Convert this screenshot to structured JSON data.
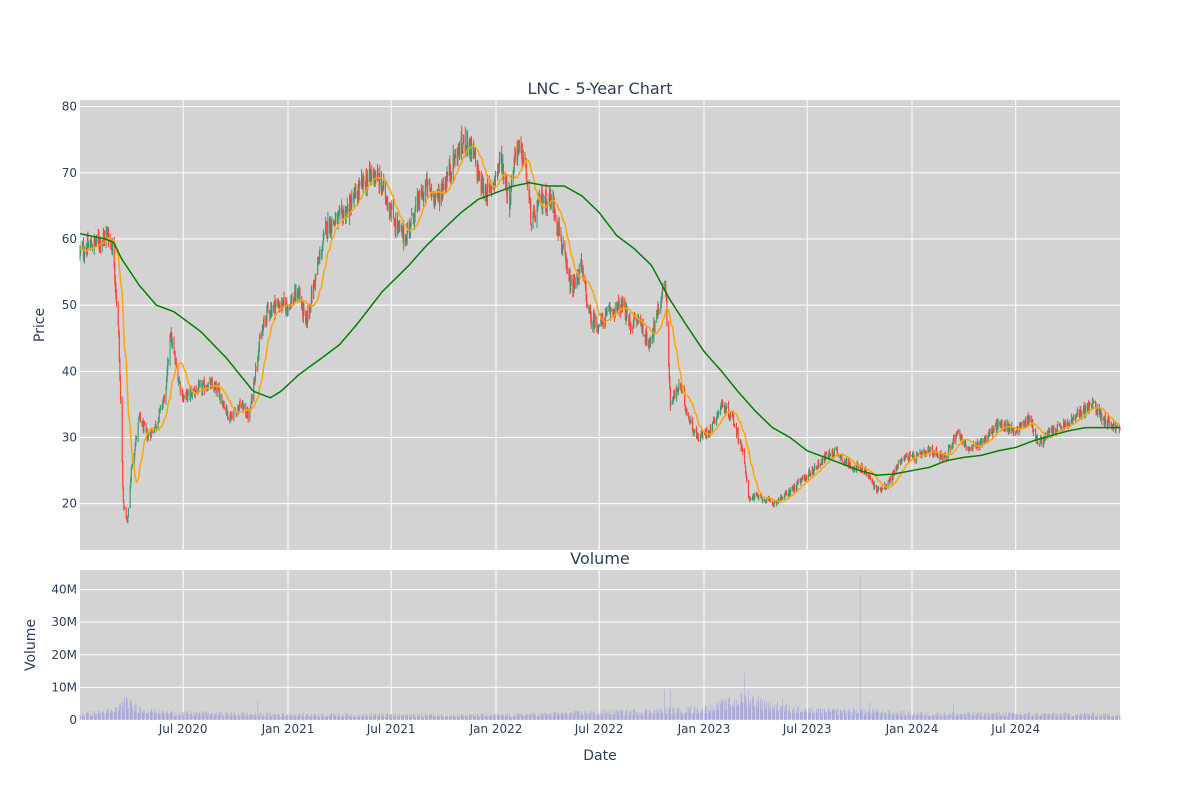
{
  "chart_data": [
    {
      "type": "candlestick",
      "title": "LNC - 5-Year Chart",
      "xlabel": "",
      "ylabel": "Price",
      "ylim": [
        13,
        81
      ],
      "yticks": [
        20,
        30,
        40,
        50,
        60,
        70,
        80
      ],
      "xlim": [
        "2020-01-02",
        "2024-12-31"
      ],
      "grid": true,
      "plot_bg": "#d3d3d3",
      "colors": {
        "up": "#3d9970",
        "down": "#ff4136",
        "ma_short": "#ffa500",
        "ma_long": "#008000"
      },
      "price_waypoints": [
        [
          "2020-01-02",
          58
        ],
        [
          "2020-01-20",
          59
        ],
        [
          "2020-02-10",
          60
        ],
        [
          "2020-02-20",
          61
        ],
        [
          "2020-03-01",
          58
        ],
        [
          "2020-03-10",
          45
        ],
        [
          "2020-03-18",
          20
        ],
        [
          "2020-03-25",
          17
        ],
        [
          "2020-04-01",
          25
        ],
        [
          "2020-04-15",
          33
        ],
        [
          "2020-04-30",
          30
        ],
        [
          "2020-05-15",
          32
        ],
        [
          "2020-06-01",
          37
        ],
        [
          "2020-06-08",
          46
        ],
        [
          "2020-06-20",
          40
        ],
        [
          "2020-07-01",
          36
        ],
        [
          "2020-07-20",
          37
        ],
        [
          "2020-08-15",
          38
        ],
        [
          "2020-09-01",
          37
        ],
        [
          "2020-09-20",
          33
        ],
        [
          "2020-10-10",
          35
        ],
        [
          "2020-10-25",
          33
        ],
        [
          "2020-11-09",
          43
        ],
        [
          "2020-11-25",
          49
        ],
        [
          "2020-12-10",
          50
        ],
        [
          "2021-01-01",
          50
        ],
        [
          "2021-01-20",
          52
        ],
        [
          "2021-02-01",
          47
        ],
        [
          "2021-02-20",
          55
        ],
        [
          "2021-03-10",
          62
        ],
        [
          "2021-04-01",
          63
        ],
        [
          "2021-04-20",
          65
        ],
        [
          "2021-05-10",
          68
        ],
        [
          "2021-06-01",
          70
        ],
        [
          "2021-06-20",
          67
        ],
        [
          "2021-07-10",
          62
        ],
        [
          "2021-07-25",
          60
        ],
        [
          "2021-08-15",
          65
        ],
        [
          "2021-09-01",
          68
        ],
        [
          "2021-09-20",
          66
        ],
        [
          "2021-10-10",
          70
        ],
        [
          "2021-10-25",
          73
        ],
        [
          "2021-11-10",
          75
        ],
        [
          "2021-11-25",
          72
        ],
        [
          "2021-12-05",
          68
        ],
        [
          "2021-12-20",
          67
        ],
        [
          "2022-01-10",
          72
        ],
        [
          "2022-01-25",
          66
        ],
        [
          "2022-02-05",
          74
        ],
        [
          "2022-02-20",
          72
        ],
        [
          "2022-03-05",
          62
        ],
        [
          "2022-03-20",
          66
        ],
        [
          "2022-04-10",
          66
        ],
        [
          "2022-04-25",
          60
        ],
        [
          "2022-05-05",
          55
        ],
        [
          "2022-05-15",
          52
        ],
        [
          "2022-05-30",
          56
        ],
        [
          "2022-06-15",
          48
        ],
        [
          "2022-07-01",
          47
        ],
        [
          "2022-07-20",
          49
        ],
        [
          "2022-08-10",
          50
        ],
        [
          "2022-08-25",
          47
        ],
        [
          "2022-09-10",
          48
        ],
        [
          "2022-09-25",
          44
        ],
        [
          "2022-10-10",
          48
        ],
        [
          "2022-10-25",
          54
        ],
        [
          "2022-11-03",
          35
        ],
        [
          "2022-11-20",
          38
        ],
        [
          "2022-12-05",
          33
        ],
        [
          "2022-12-20",
          30
        ],
        [
          "2023-01-10",
          31
        ],
        [
          "2023-02-01",
          35
        ],
        [
          "2023-02-20",
          33
        ],
        [
          "2023-03-10",
          28
        ],
        [
          "2023-03-20",
          21
        ],
        [
          "2023-04-10",
          21
        ],
        [
          "2023-05-01",
          20
        ],
        [
          "2023-05-20",
          21
        ],
        [
          "2023-06-15",
          23
        ],
        [
          "2023-07-10",
          25
        ],
        [
          "2023-08-01",
          27
        ],
        [
          "2023-08-20",
          28
        ],
        [
          "2023-09-10",
          26
        ],
        [
          "2023-10-10",
          25
        ],
        [
          "2023-11-01",
          22
        ],
        [
          "2023-11-20",
          23
        ],
        [
          "2023-12-15",
          27
        ],
        [
          "2024-01-10",
          27
        ],
        [
          "2024-02-01",
          28
        ],
        [
          "2024-03-01",
          27
        ],
        [
          "2024-03-20",
          31
        ],
        [
          "2024-04-10",
          28
        ],
        [
          "2024-05-10",
          30
        ],
        [
          "2024-06-01",
          32
        ],
        [
          "2024-07-01",
          31
        ],
        [
          "2024-07-25",
          33
        ],
        [
          "2024-08-10",
          29
        ],
        [
          "2024-09-01",
          31
        ],
        [
          "2024-10-01",
          32
        ],
        [
          "2024-10-25",
          34
        ],
        [
          "2024-11-15",
          35
        ],
        [
          "2024-12-01",
          33
        ],
        [
          "2024-12-31",
          31
        ]
      ],
      "ma_long_waypoints": [
        [
          "2020-01-02",
          60.8
        ],
        [
          "2020-02-15",
          60
        ],
        [
          "2020-03-01",
          59.5
        ],
        [
          "2020-03-15",
          57
        ],
        [
          "2020-04-15",
          53
        ],
        [
          "2020-05-15",
          50
        ],
        [
          "2020-06-15",
          49
        ],
        [
          "2020-08-01",
          46
        ],
        [
          "2020-09-15",
          42
        ],
        [
          "2020-11-01",
          37
        ],
        [
          "2020-12-01",
          36
        ],
        [
          "2020-12-20",
          37
        ],
        [
          "2021-01-20",
          39.5
        ],
        [
          "2021-03-01",
          42
        ],
        [
          "2021-04-01",
          44
        ],
        [
          "2021-05-01",
          47
        ],
        [
          "2021-06-15",
          52
        ],
        [
          "2021-08-01",
          56
        ],
        [
          "2021-09-01",
          59
        ],
        [
          "2021-10-01",
          61.5
        ],
        [
          "2021-11-01",
          64
        ],
        [
          "2021-12-01",
          66
        ],
        [
          "2022-01-01",
          67
        ],
        [
          "2022-02-01",
          68
        ],
        [
          "2022-03-01",
          68.5
        ],
        [
          "2022-04-01",
          68
        ],
        [
          "2022-05-01",
          68
        ],
        [
          "2022-06-01",
          66.5
        ],
        [
          "2022-07-01",
          64
        ],
        [
          "2022-08-01",
          60.5
        ],
        [
          "2022-09-01",
          58.5
        ],
        [
          "2022-10-01",
          56
        ],
        [
          "2022-11-01",
          51
        ],
        [
          "2022-12-01",
          47
        ],
        [
          "2023-01-01",
          43
        ],
        [
          "2023-02-01",
          40
        ],
        [
          "2023-03-01",
          37
        ],
        [
          "2023-04-01",
          34
        ],
        [
          "2023-05-01",
          31.5
        ],
        [
          "2023-06-01",
          30
        ],
        [
          "2023-07-01",
          28
        ],
        [
          "2023-08-01",
          27
        ],
        [
          "2023-09-01",
          26
        ],
        [
          "2023-10-01",
          25
        ],
        [
          "2023-11-01",
          24.3
        ],
        [
          "2023-12-01",
          24.5
        ],
        [
          "2024-01-01",
          25
        ],
        [
          "2024-02-01",
          25.5
        ],
        [
          "2024-03-01",
          26.5
        ],
        [
          "2024-04-01",
          27
        ],
        [
          "2024-05-01",
          27.3
        ],
        [
          "2024-06-01",
          28
        ],
        [
          "2024-07-01",
          28.5
        ],
        [
          "2024-08-01",
          29.5
        ],
        [
          "2024-09-01",
          30.3
        ],
        [
          "2024-10-01",
          31
        ],
        [
          "2024-11-01",
          31.5
        ],
        [
          "2024-12-31",
          31.5
        ]
      ]
    },
    {
      "type": "bar",
      "title": "Volume",
      "xlabel": "Date",
      "ylabel": "Volume",
      "ylim": [
        0,
        46000000
      ],
      "yticks": [
        0,
        10000000,
        20000000,
        30000000,
        40000000
      ],
      "ytick_labels": [
        "0",
        "10M",
        "20M",
        "30M",
        "40M"
      ],
      "xticks": [
        "2020-07-01",
        "2021-01-01",
        "2021-07-01",
        "2022-01-01",
        "2022-07-01",
        "2023-01-01",
        "2023-07-01",
        "2024-01-01",
        "2024-07-01"
      ],
      "xtick_labels": [
        "Jul 2020",
        "Jan 2021",
        "Jul 2021",
        "Jan 2022",
        "Jul 2022",
        "Jan 2023",
        "Jul 2023",
        "Jan 2024",
        "Jul 2024"
      ],
      "bar_color": "#9999dd",
      "volume_waypoints": [
        [
          "2020-01-02",
          1.5
        ],
        [
          "2020-03-01",
          2.5
        ],
        [
          "2020-03-20",
          5
        ],
        [
          "2020-04-20",
          3
        ],
        [
          "2020-06-01",
          2
        ],
        [
          "2021-01-01",
          1.5
        ],
        [
          "2022-01-01",
          1.3
        ],
        [
          "2022-10-01",
          2.5
        ],
        [
          "2023-01-01",
          3
        ],
        [
          "2023-03-20",
          6
        ],
        [
          "2023-05-01",
          4
        ],
        [
          "2023-07-01",
          2.5
        ],
        [
          "2023-10-01",
          2.5
        ],
        [
          "2024-01-01",
          1.8
        ],
        [
          "2024-12-31",
          1.5
        ]
      ],
      "volume_spikes": [
        [
          "2020-11-09",
          6
        ],
        [
          "2022-10-25",
          9.5
        ],
        [
          "2022-11-04",
          9.5
        ],
        [
          "2023-02-01",
          7
        ],
        [
          "2023-03-13",
          14.5
        ],
        [
          "2023-03-21",
          9
        ],
        [
          "2023-05-20",
          6.5
        ],
        [
          "2023-10-02",
          44.5
        ],
        [
          "2023-10-20",
          5.5
        ],
        [
          "2024-03-15",
          5
        ]
      ]
    }
  ]
}
